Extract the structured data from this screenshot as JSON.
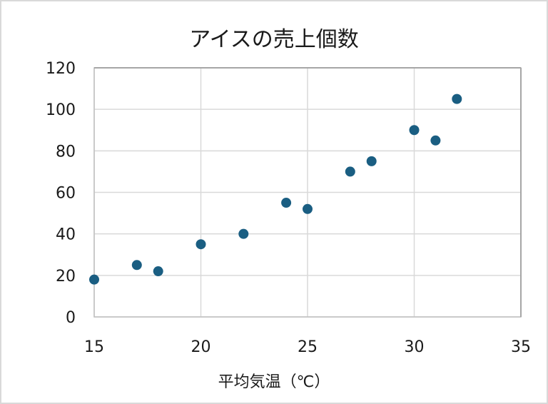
{
  "chart_data": {
    "type": "scatter",
    "title": "アイスの売上個数",
    "xlabel": "平均気温（℃）",
    "ylabel": "",
    "xlim": [
      15,
      35
    ],
    "ylim": [
      0,
      120
    ],
    "x_ticks": [
      15,
      20,
      25,
      30,
      35
    ],
    "y_ticks": [
      0,
      20,
      40,
      60,
      80,
      100,
      120
    ],
    "grid": true,
    "legend": null,
    "marker_color": "#1a5e82",
    "series": [
      {
        "name": "売上個数",
        "points": [
          {
            "x": 15,
            "y": 18
          },
          {
            "x": 17,
            "y": 25
          },
          {
            "x": 18,
            "y": 22
          },
          {
            "x": 20,
            "y": 35
          },
          {
            "x": 22,
            "y": 40
          },
          {
            "x": 24,
            "y": 55
          },
          {
            "x": 25,
            "y": 52
          },
          {
            "x": 27,
            "y": 70
          },
          {
            "x": 28,
            "y": 75
          },
          {
            "x": 30,
            "y": 90
          },
          {
            "x": 31,
            "y": 85
          },
          {
            "x": 32,
            "y": 105
          }
        ]
      }
    ]
  },
  "title": "アイスの売上個数",
  "xlabel": "平均気温（℃）"
}
